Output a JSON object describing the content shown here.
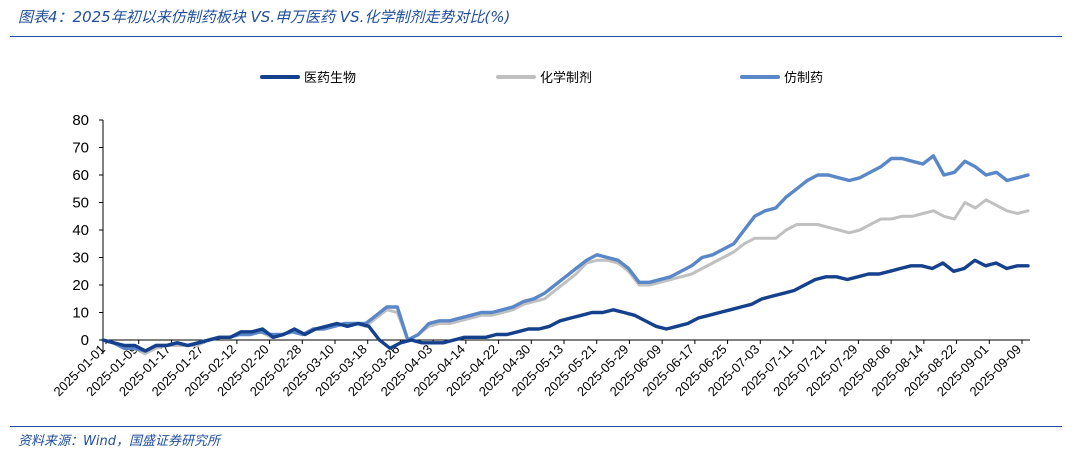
{
  "figure": {
    "title": "图表4：2025年初以来仿制药板块 VS.申万医药 VS.化学制剂走势对比(%)",
    "source": "资料来源：Wind，国盛证券研究所"
  },
  "chart_data": {
    "type": "line",
    "title": "",
    "xlabel": "",
    "ylabel": "",
    "ylim": [
      -5,
      80
    ],
    "yticks": [
      0,
      10,
      20,
      30,
      40,
      50,
      60,
      70,
      80
    ],
    "grid": false,
    "legend_position": "top",
    "x_tick_labels": [
      "2025-01-01",
      "2025-01-09",
      "2025-01-17",
      "2025-01-27",
      "2025-02-12",
      "2025-02-20",
      "2025-02-28",
      "2025-03-10",
      "2025-03-18",
      "2025-03-26",
      "2025-04-03",
      "2025-04-14",
      "2025-04-22",
      "2025-04-30",
      "2025-05-13",
      "2025-05-21",
      "2025-05-29",
      "2025-06-09",
      "2025-06-17",
      "2025-06-25",
      "2025-07-03",
      "2025-07-11",
      "2025-07-21",
      "2025-07-29",
      "2025-08-06",
      "2025-08-14",
      "2025-08-22",
      "2025-09-01",
      "2025-09-09"
    ],
    "series": [
      {
        "name": "医药生物",
        "color": "#14408c",
        "values": [
          0,
          -1,
          -2,
          -2,
          -4,
          -2,
          -2,
          -1,
          -2,
          -1,
          0,
          1,
          1,
          3,
          3,
          4,
          1,
          2,
          4,
          2,
          4,
          5,
          6,
          5,
          6,
          5,
          0,
          -3,
          -1,
          0,
          -1,
          -1,
          -1,
          0,
          1,
          1,
          1,
          2,
          2,
          3,
          4,
          4,
          5,
          7,
          8,
          9,
          10,
          10,
          11,
          10,
          9,
          7,
          5,
          4,
          5,
          6,
          8,
          9,
          10,
          11,
          12,
          13,
          15,
          16,
          17,
          18,
          20,
          22,
          23,
          23,
          22,
          23,
          24,
          24,
          25,
          26,
          27,
          27,
          26,
          28,
          25,
          26,
          29,
          27,
          28,
          26,
          27,
          27
        ]
      },
      {
        "name": "化学制剂",
        "color": "#c0c0c0",
        "values": [
          0,
          -1,
          -3,
          -3,
          -5,
          -3,
          -2,
          -2,
          -2,
          -2,
          0,
          1,
          1,
          2,
          2,
          3,
          1,
          2,
          3,
          2,
          4,
          4,
          5,
          6,
          6,
          5,
          8,
          11,
          10,
          0,
          2,
          5,
          6,
          6,
          7,
          8,
          9,
          9,
          10,
          11,
          13,
          14,
          15,
          18,
          21,
          24,
          28,
          29,
          29,
          28,
          25,
          20,
          20,
          21,
          22,
          23,
          24,
          26,
          28,
          30,
          32,
          35,
          37,
          37,
          37,
          40,
          42,
          42,
          42,
          41,
          40,
          39,
          40,
          42,
          44,
          44,
          45,
          45,
          46,
          47,
          45,
          44,
          50,
          48,
          51,
          49,
          47,
          46,
          47
        ]
      },
      {
        "name": "仿制药",
        "color": "#5a87c8",
        "values": [
          0,
          -1,
          -3,
          -3,
          -4,
          -2,
          -2,
          -1,
          -2,
          -1,
          0,
          1,
          1,
          2,
          2,
          3,
          2,
          2,
          3,
          2,
          4,
          4,
          5,
          6,
          6,
          6,
          9,
          12,
          12,
          0,
          2,
          6,
          7,
          7,
          8,
          9,
          10,
          10,
          11,
          12,
          14,
          15,
          17,
          20,
          23,
          26,
          29,
          31,
          30,
          29,
          26,
          21,
          21,
          22,
          23,
          25,
          27,
          30,
          31,
          33,
          35,
          40,
          45,
          47,
          48,
          52,
          55,
          58,
          60,
          60,
          59,
          58,
          59,
          61,
          63,
          66,
          66,
          65,
          64,
          67,
          60,
          61,
          65,
          63,
          60,
          61,
          58,
          59,
          60
        ]
      }
    ]
  }
}
